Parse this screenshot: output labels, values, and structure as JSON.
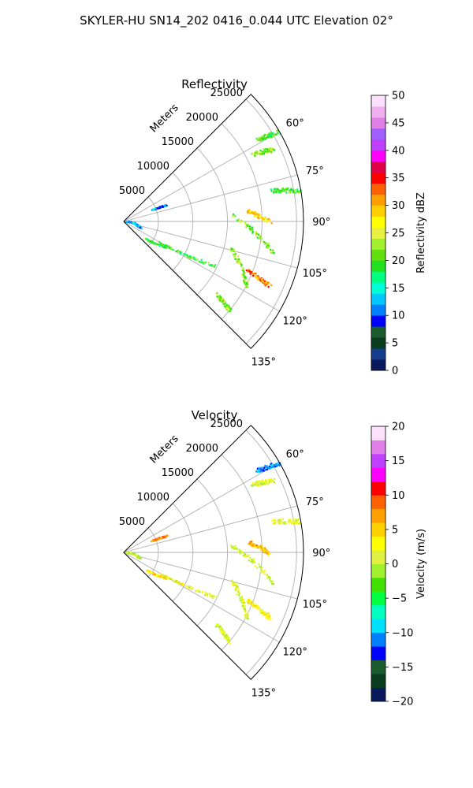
{
  "figure": {
    "suptitle": "SKYLER-HU  SN14_202  0416_0.044 UTC Elevation 02°"
  },
  "chart_data": [
    {
      "type": "scatter",
      "title": "Reflectivity",
      "coordinate_system": "polar-sector",
      "theta_range_deg": [
        45,
        135
      ],
      "r_range_m": [
        0,
        26000
      ],
      "r_ticks": [
        5000,
        10000,
        15000,
        20000,
        25000
      ],
      "r_tick_labels": [
        "5000",
        "10000",
        "15000",
        "20000",
        "25000"
      ],
      "theta_ticks": [
        60,
        75,
        90,
        105,
        120,
        135
      ],
      "theta_tick_labels": [
        "60°",
        "75°",
        "90°",
        "105°",
        "120°",
        "135°"
      ],
      "r_axis_label": "Meters",
      "grid": true,
      "colorbar": {
        "label": "Reflectivity dBZ",
        "min": 0,
        "max": 50,
        "ticks": [
          0,
          5,
          10,
          15,
          20,
          25,
          30,
          35,
          40,
          45,
          50
        ],
        "tick_labels": [
          "0",
          "5",
          "10",
          "15",
          "20",
          "25",
          "30",
          "35",
          "40",
          "45",
          "50"
        ]
      },
      "echo_streaks": [
        {
          "r0": 22500,
          "r1": 26000,
          "theta0": 58,
          "theta1": 60,
          "value": 20
        },
        {
          "r0": 21000,
          "r1": 24000,
          "theta0": 62,
          "theta1": 64,
          "value": 22
        },
        {
          "r0": 22000,
          "r1": 26000,
          "theta0": 78,
          "theta1": 80,
          "value": 20
        },
        {
          "r0": 15500,
          "r1": 22000,
          "theta0": 86,
          "theta1": 102,
          "value": 22
        },
        {
          "r0": 18000,
          "r1": 21000,
          "theta0": 85,
          "theta1": 90,
          "value": 28
        },
        {
          "r0": 16000,
          "r1": 20000,
          "theta0": 104,
          "theta1": 118,
          "value": 22
        },
        {
          "r0": 19000,
          "r1": 23000,
          "theta0": 111,
          "theta1": 114,
          "value": 32
        },
        {
          "r0": 6000,
          "r1": 14500,
          "theta0": 120,
          "theta1": 116,
          "value": 20
        },
        {
          "r0": 4000,
          "r1": 7000,
          "theta0": 128,
          "theta1": 121,
          "value": 18
        },
        {
          "r0": 200,
          "r1": 2400,
          "theta0": 80,
          "theta1": 110,
          "value": 12
        },
        {
          "r0": 4500,
          "r1": 6500,
          "theta0": 66,
          "theta1": 68,
          "value": 12
        },
        {
          "r0": 17000,
          "r1": 20000,
          "theta0": 128,
          "theta1": 130,
          "value": 22
        }
      ]
    },
    {
      "type": "scatter",
      "title": "Velocity",
      "coordinate_system": "polar-sector",
      "theta_range_deg": [
        45,
        135
      ],
      "r_range_m": [
        0,
        26000
      ],
      "r_ticks": [
        5000,
        10000,
        15000,
        20000,
        25000
      ],
      "r_tick_labels": [
        "5000",
        "10000",
        "15000",
        "20000",
        "25000"
      ],
      "theta_ticks": [
        60,
        75,
        90,
        105,
        120,
        135
      ],
      "theta_tick_labels": [
        "60°",
        "75°",
        "90°",
        "105°",
        "120°",
        "135°"
      ],
      "r_axis_label": "Meters",
      "grid": true,
      "colorbar": {
        "label": "Velocity (m/s)",
        "min": -20,
        "max": 20,
        "ticks": [
          -20,
          -15,
          -10,
          -5,
          0,
          5,
          10,
          15,
          20
        ],
        "tick_labels": [
          "−20",
          "−15",
          "−10",
          "−5",
          "0",
          "5",
          "10",
          "15",
          "20"
        ]
      },
      "echo_streaks": [
        {
          "r0": 22500,
          "r1": 26000,
          "theta0": 58,
          "theta1": 60,
          "value": -11
        },
        {
          "r0": 21000,
          "r1": 24000,
          "theta0": 62,
          "theta1": 64,
          "value": 1
        },
        {
          "r0": 22000,
          "r1": 26000,
          "theta0": 78,
          "theta1": 80,
          "value": 2
        },
        {
          "r0": 15500,
          "r1": 22000,
          "theta0": 86,
          "theta1": 102,
          "value": 1
        },
        {
          "r0": 18000,
          "r1": 21000,
          "theta0": 85,
          "theta1": 90,
          "value": 6
        },
        {
          "r0": 16000,
          "r1": 20000,
          "theta0": 104,
          "theta1": 118,
          "value": 1
        },
        {
          "r0": 19000,
          "r1": 23000,
          "theta0": 111,
          "theta1": 114,
          "value": 3
        },
        {
          "r0": 6000,
          "r1": 14500,
          "theta0": 120,
          "theta1": 116,
          "value": 2
        },
        {
          "r0": 4000,
          "r1": 7000,
          "theta0": 128,
          "theta1": 121,
          "value": 4
        },
        {
          "r0": 200,
          "r1": 2400,
          "theta0": 80,
          "theta1": 110,
          "value": 0
        },
        {
          "r0": 4500,
          "r1": 6500,
          "theta0": 66,
          "theta1": 68,
          "value": 8
        },
        {
          "r0": 17000,
          "r1": 20000,
          "theta0": 128,
          "theta1": 130,
          "value": 1
        }
      ]
    }
  ],
  "colors": {
    "reflectivity_scale": [
      "#0a1a5c",
      "#143d8c",
      "#0a3d1e",
      "#1a5c2e",
      "#0000ff",
      "#0080ff",
      "#00c8ff",
      "#00ffd8",
      "#00ff80",
      "#20e020",
      "#60e010",
      "#a0f030",
      "#e8f040",
      "#ffff00",
      "#ffd000",
      "#ffa000",
      "#ff6000",
      "#ff0000",
      "#e0004a",
      "#ff00ff",
      "#c040ff",
      "#a060ff",
      "#e080e8",
      "#f0b0f0",
      "#fce0fc"
    ],
    "velocity_scale": [
      "#0a1a5c",
      "#0a3d1e",
      "#1a5c2e",
      "#0000ff",
      "#0080ff",
      "#00e0ff",
      "#00ffc0",
      "#00ff40",
      "#40e000",
      "#a0f030",
      "#e0f040",
      "#ffff00",
      "#ffd000",
      "#ffa000",
      "#ff6000",
      "#ff0000",
      "#ff00ff",
      "#c040ff",
      "#e080e8",
      "#fce0fc"
    ],
    "grid": "#b0b0b0",
    "frame": "#000000"
  }
}
